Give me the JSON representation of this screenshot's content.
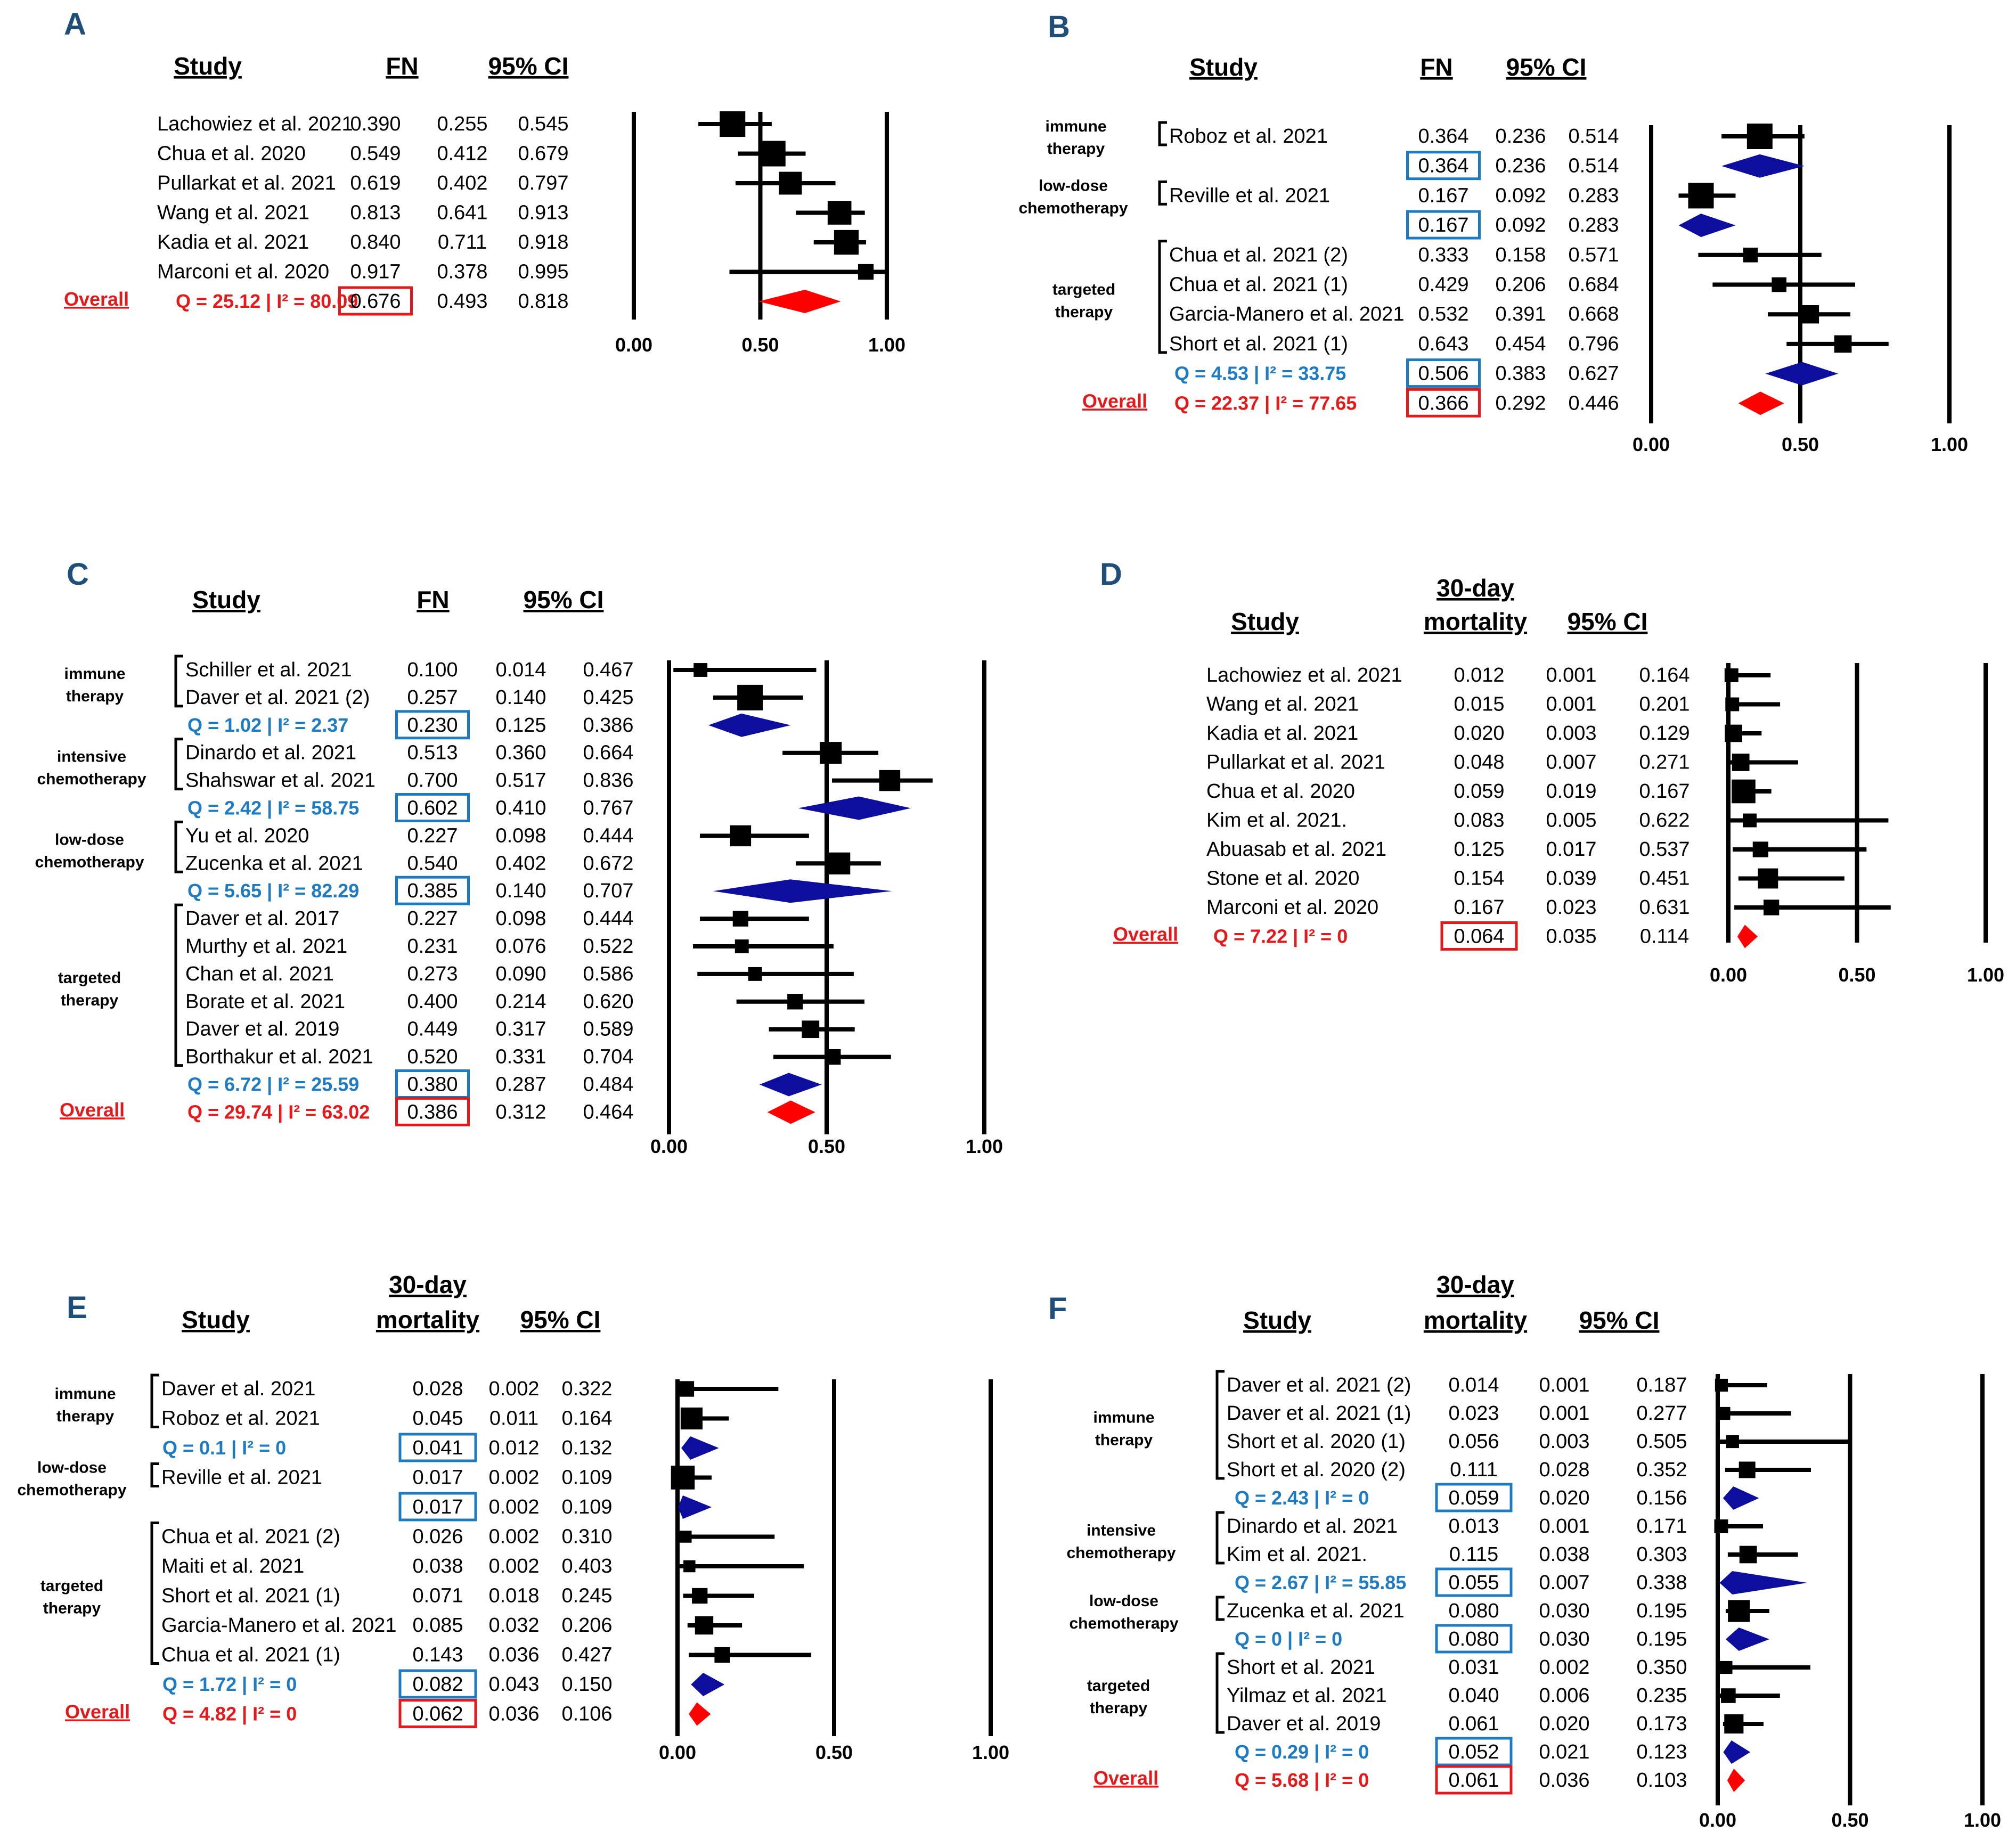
{
  "colors": {
    "label": "#1f4e79",
    "subgroup": "#1f7bc1",
    "overall": "#e31a1c",
    "subgroup_diamond": "#0d0d9e",
    "overall_diamond": "#ff0000"
  },
  "chart_data": [
    {
      "type": "forest",
      "panel": "A",
      "headers": [
        "Study",
        "FN",
        "95% CI"
      ],
      "xticks": [
        "0.00",
        "0.50",
        "1.00"
      ],
      "xlim": [
        0,
        1
      ],
      "rows": [
        {
          "kind": "study",
          "study": "Lachowiez et al. 2021",
          "est": "0.390",
          "lo": "0.255",
          "hi": "0.545",
          "w": 1.0
        },
        {
          "kind": "study",
          "study": "Chua et al. 2020",
          "est": "0.549",
          "lo": "0.412",
          "hi": "0.679",
          "w": 1.0
        },
        {
          "kind": "study",
          "study": "Pullarkat et al. 2021",
          "est": "0.619",
          "lo": "0.402",
          "hi": "0.797",
          "w": 0.85
        },
        {
          "kind": "study",
          "study": "Wang et al. 2021",
          "est": "0.813",
          "lo": "0.641",
          "hi": "0.913",
          "w": 0.9
        },
        {
          "kind": "study",
          "study": "Kadia et al. 2021",
          "est": "0.840",
          "lo": "0.711",
          "hi": "0.918",
          "w": 0.95
        },
        {
          "kind": "study",
          "study": "Marconi et al. 2020",
          "est": "0.917",
          "lo": "0.378",
          "hi": "0.995",
          "w": 0.45
        },
        {
          "kind": "overall",
          "label": "Overall",
          "stat": "Q = 25.12 | I² = 80.09",
          "est": "0.676",
          "lo": "0.493",
          "hi": "0.818"
        }
      ]
    },
    {
      "type": "forest",
      "panel": "B",
      "headers": [
        "Study",
        "FN",
        "95% CI"
      ],
      "xticks": [
        "0.00",
        "0.50",
        "1.00"
      ],
      "xlim": [
        0,
        1
      ],
      "groups": [
        "immune therapy",
        "low-dose chemotherapy",
        "targeted therapy"
      ],
      "rows": [
        {
          "kind": "study",
          "study": "Roboz et al. 2021",
          "est": "0.364",
          "lo": "0.236",
          "hi": "0.514",
          "w": 1.0
        },
        {
          "kind": "subgroup",
          "stat": "",
          "est": "0.364",
          "lo": "0.236",
          "hi": "0.514"
        },
        {
          "kind": "study",
          "study": "Reville et al. 2021",
          "est": "0.167",
          "lo": "0.092",
          "hi": "0.283",
          "w": 1.0
        },
        {
          "kind": "subgroup",
          "stat": "",
          "est": "0.167",
          "lo": "0.092",
          "hi": "0.283"
        },
        {
          "kind": "study",
          "study": "Chua et al. 2021 (2)",
          "est": "0.333",
          "lo": "0.158",
          "hi": "0.571",
          "w": 0.4
        },
        {
          "kind": "study",
          "study": "Chua et al. 2021 (1)",
          "est": "0.429",
          "lo": "0.206",
          "hi": "0.684",
          "w": 0.4
        },
        {
          "kind": "study",
          "study": "Garcia-Manero et al. 2021",
          "est": "0.532",
          "lo": "0.391",
          "hi": "0.668",
          "w": 0.6
        },
        {
          "kind": "study",
          "study": "Short et al. 2021 (1)",
          "est": "0.643",
          "lo": "0.454",
          "hi": "0.796",
          "w": 0.55
        },
        {
          "kind": "subgroup",
          "stat": "Q = 4.53 | I² = 33.75",
          "est": "0.506",
          "lo": "0.383",
          "hi": "0.627"
        },
        {
          "kind": "overall",
          "label": "Overall",
          "stat": "Q = 22.37 | I² = 77.65",
          "est": "0.366",
          "lo": "0.292",
          "hi": "0.446"
        }
      ]
    },
    {
      "type": "forest",
      "panel": "C",
      "headers": [
        "Study",
        "FN",
        "95% CI"
      ],
      "xticks": [
        "0.00",
        "0.50",
        "1.00"
      ],
      "xlim": [
        0,
        1
      ],
      "groups": [
        "immune therapy",
        "intensive chemotherapy",
        "low-dose chemotherapy",
        "targeted therapy"
      ],
      "rows": [
        {
          "kind": "study",
          "study": "Schiller et al. 2021",
          "est": "0.100",
          "lo": "0.014",
          "hi": "0.467",
          "w": 0.35
        },
        {
          "kind": "study",
          "study": "Daver et al. 2021 (2)",
          "est": "0.257",
          "lo": "0.140",
          "hi": "0.425",
          "w": 1.0
        },
        {
          "kind": "subgroup",
          "stat": "Q = 1.02 | I² = 2.37",
          "est": "0.230",
          "lo": "0.125",
          "hi": "0.386"
        },
        {
          "kind": "study",
          "study": "Dinardo et al. 2021",
          "est": "0.513",
          "lo": "0.360",
          "hi": "0.664",
          "w": 0.8
        },
        {
          "kind": "study",
          "study": "Shahswar et al. 2021",
          "est": "0.700",
          "lo": "0.517",
          "hi": "0.836",
          "w": 0.75
        },
        {
          "kind": "subgroup",
          "stat": "Q = 2.42 | I² = 58.75",
          "est": "0.602",
          "lo": "0.410",
          "hi": "0.767"
        },
        {
          "kind": "study",
          "study": "Yu et al. 2020",
          "est": "0.227",
          "lo": "0.098",
          "hi": "0.444",
          "w": 0.75
        },
        {
          "kind": "study",
          "study": "Zucenka et al. 2021",
          "est": "0.540",
          "lo": "0.402",
          "hi": "0.672",
          "w": 0.8
        },
        {
          "kind": "subgroup",
          "stat": "Q = 5.65 | I² = 82.29",
          "est": "0.385",
          "lo": "0.140",
          "hi": "0.707"
        },
        {
          "kind": "study",
          "study": "Daver et al. 2017",
          "est": "0.227",
          "lo": "0.098",
          "hi": "0.444",
          "w": 0.45
        },
        {
          "kind": "study",
          "study": "Murthy et al. 2021",
          "est": "0.231",
          "lo": "0.076",
          "hi": "0.522",
          "w": 0.35
        },
        {
          "kind": "study",
          "study": "Chan et al. 2021",
          "est": "0.273",
          "lo": "0.090",
          "hi": "0.586",
          "w": 0.35
        },
        {
          "kind": "study",
          "study": "Borate et al. 2021",
          "est": "0.400",
          "lo": "0.214",
          "hi": "0.620",
          "w": 0.45
        },
        {
          "kind": "study",
          "study": "Daver et al. 2019",
          "est": "0.449",
          "lo": "0.317",
          "hi": "0.589",
          "w": 0.55
        },
        {
          "kind": "study",
          "study": "Borthakur et al. 2021",
          "est": "0.520",
          "lo": "0.331",
          "hi": "0.704",
          "w": 0.45
        },
        {
          "kind": "subgroup",
          "stat": "Q = 6.72 | I² = 25.59",
          "est": "0.380",
          "lo": "0.287",
          "hi": "0.484"
        },
        {
          "kind": "overall",
          "label": "Overall",
          "stat": "Q = 29.74 | I² = 63.02",
          "est": "0.386",
          "lo": "0.312",
          "hi": "0.464"
        }
      ]
    },
    {
      "type": "forest",
      "panel": "D",
      "headers": [
        "Study",
        "30-day",
        "mortality",
        "95% CI"
      ],
      "xticks": [
        "0.00",
        "0.50",
        "1.00"
      ],
      "xlim": [
        0,
        1
      ],
      "rows": [
        {
          "kind": "study",
          "study": "Lachowiez et al. 2021",
          "est": "0.012",
          "lo": "0.001",
          "hi": "0.164",
          "w": 0.35
        },
        {
          "kind": "study",
          "study": "Wang et al. 2021",
          "est": "0.015",
          "lo": "0.001",
          "hi": "0.201",
          "w": 0.35
        },
        {
          "kind": "study",
          "study": "Kadia et al. 2021",
          "est": "0.020",
          "lo": "0.003",
          "hi": "0.129",
          "w": 0.55
        },
        {
          "kind": "study",
          "study": "Pullarkat et al. 2021",
          "est": "0.048",
          "lo": "0.007",
          "hi": "0.271",
          "w": 0.55
        },
        {
          "kind": "study",
          "study": "Chua et al. 2020",
          "est": "0.059",
          "lo": "0.019",
          "hi": "0.167",
          "w": 0.9
        },
        {
          "kind": "study",
          "study": "Kim et al. 2021.",
          "est": "0.083",
          "lo": "0.005",
          "hi": "0.622",
          "w": 0.35
        },
        {
          "kind": "study",
          "study": "Abuasab et al. 2021",
          "est": "0.125",
          "lo": "0.017",
          "hi": "0.537",
          "w": 0.45
        },
        {
          "kind": "study",
          "study": "Stone et al. 2020",
          "est": "0.154",
          "lo": "0.039",
          "hi": "0.451",
          "w": 0.7
        },
        {
          "kind": "study",
          "study": "Marconi et al. 2020",
          "est": "0.167",
          "lo": "0.023",
          "hi": "0.631",
          "w": 0.45
        },
        {
          "kind": "overall",
          "label": "Overall",
          "stat": "Q = 7.22 | I² = 0",
          "est": "0.064",
          "lo": "0.035",
          "hi": "0.114"
        }
      ]
    },
    {
      "type": "forest",
      "panel": "E",
      "headers": [
        "Study",
        "30-day",
        "mortality",
        "95% CI"
      ],
      "xticks": [
        "0.00",
        "0.50",
        "1.00"
      ],
      "xlim": [
        0,
        1
      ],
      "groups": [
        "immune therapy",
        "low-dose chemotherapy",
        "targeted therapy"
      ],
      "rows": [
        {
          "kind": "study",
          "study": "Daver et al. 2021",
          "est": "0.028",
          "lo": "0.002",
          "hi": "0.322",
          "w": 0.45
        },
        {
          "kind": "study",
          "study": "Roboz et al. 2021",
          "est": "0.045",
          "lo": "0.011",
          "hi": "0.164",
          "w": 0.8
        },
        {
          "kind": "subgroup",
          "stat": "Q = 0.1 | I² = 0",
          "est": "0.041",
          "lo": "0.012",
          "hi": "0.132"
        },
        {
          "kind": "study",
          "study": "Reville et al. 2021",
          "est": "0.017",
          "lo": "0.002",
          "hi": "0.109",
          "w": 0.9
        },
        {
          "kind": "subgroup",
          "stat": "",
          "est": "0.017",
          "lo": "0.002",
          "hi": "0.109"
        },
        {
          "kind": "study",
          "study": "Chua et al. 2021 (2)",
          "est": "0.026",
          "lo": "0.002",
          "hi": "0.310",
          "w": 0.25
        },
        {
          "kind": "study",
          "study": "Maiti et al. 2021",
          "est": "0.038",
          "lo": "0.002",
          "hi": "0.403",
          "w": 0.25
        },
        {
          "kind": "study",
          "study": "Short et al. 2021 (1)",
          "est": "0.071",
          "lo": "0.018",
          "hi": "0.245",
          "w": 0.45
        },
        {
          "kind": "study",
          "study": "Garcia-Manero et al. 2021",
          "est": "0.085",
          "lo": "0.032",
          "hi": "0.206",
          "w": 0.6
        },
        {
          "kind": "study",
          "study": "Chua et al. 2021 (1)",
          "est": "0.143",
          "lo": "0.036",
          "hi": "0.427",
          "w": 0.45
        },
        {
          "kind": "subgroup",
          "stat": "Q = 1.72 | I² = 0",
          "est": "0.082",
          "lo": "0.043",
          "hi": "0.150"
        },
        {
          "kind": "overall",
          "label": "Overall",
          "stat": "Q = 4.82 | I² = 0",
          "est": "0.062",
          "lo": "0.036",
          "hi": "0.106"
        }
      ]
    },
    {
      "type": "forest",
      "panel": "F",
      "headers": [
        "Study",
        "30-day",
        "mortality",
        "95% CI"
      ],
      "xticks": [
        "0.00",
        "0.50",
        "1.00"
      ],
      "xlim": [
        0,
        1
      ],
      "groups": [
        "immune therapy",
        "intensive chemotherapy",
        "low-dose chemotherapy",
        "targeted therapy"
      ],
      "rows": [
        {
          "kind": "study",
          "study": "Daver et al. 2021 (2)",
          "est": "0.014",
          "lo": "0.001",
          "hi": "0.187",
          "w": 0.3
        },
        {
          "kind": "study",
          "study": "Daver et al. 2021 (1)",
          "est": "0.023",
          "lo": "0.001",
          "hi": "0.277",
          "w": 0.3
        },
        {
          "kind": "study",
          "study": "Short et al. 2020 (1)",
          "est": "0.056",
          "lo": "0.003",
          "hi": "0.505",
          "w": 0.3
        },
        {
          "kind": "study",
          "study": "Short et al. 2020 (2)",
          "est": "0.111",
          "lo": "0.028",
          "hi": "0.352",
          "w": 0.5
        },
        {
          "kind": "subgroup",
          "stat": "Q = 2.43 | I² = 0",
          "est": "0.059",
          "lo": "0.020",
          "hi": "0.156"
        },
        {
          "kind": "study",
          "study": "Dinardo et al. 2021",
          "est": "0.013",
          "lo": "0.001",
          "hi": "0.171",
          "w": 0.35
        },
        {
          "kind": "study",
          "study": "Kim et al. 2021.",
          "est": "0.115",
          "lo": "0.038",
          "hi": "0.303",
          "w": 0.55
        },
        {
          "kind": "subgroup",
          "stat": "Q = 2.67 | I² = 55.85",
          "est": "0.055",
          "lo": "0.007",
          "hi": "0.338"
        },
        {
          "kind": "study",
          "study": "Zucenka et al. 2021",
          "est": "0.080",
          "lo": "0.030",
          "hi": "0.195",
          "w": 0.8
        },
        {
          "kind": "subgroup",
          "stat": "Q = 0 | I² = 0",
          "est": "0.080",
          "lo": "0.030",
          "hi": "0.195"
        },
        {
          "kind": "study",
          "study": "Short et al. 2021",
          "est": "0.031",
          "lo": "0.002",
          "hi": "0.350",
          "w": 0.3
        },
        {
          "kind": "study",
          "study": "Yilmaz et al. 2021",
          "est": "0.040",
          "lo": "0.006",
          "hi": "0.235",
          "w": 0.4
        },
        {
          "kind": "study",
          "study": "Daver et al. 2019",
          "est": "0.061",
          "lo": "0.020",
          "hi": "0.173",
          "w": 0.65
        },
        {
          "kind": "subgroup",
          "stat": "Q = 0.29 | I² = 0",
          "est": "0.052",
          "lo": "0.021",
          "hi": "0.123"
        },
        {
          "kind": "overall",
          "label": "Overall",
          "stat": "Q = 5.68 | I² = 0",
          "est": "0.061",
          "lo": "0.036",
          "hi": "0.103"
        }
      ]
    }
  ]
}
